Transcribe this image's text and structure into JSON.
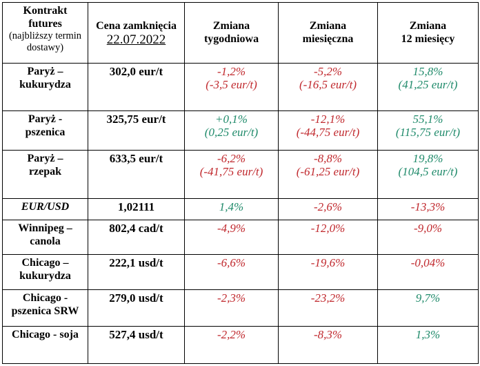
{
  "header": {
    "contract_line1": "Kontrakt",
    "contract_line2": "futures",
    "contract_sub_line1": "(najbliższy termin",
    "contract_sub_line2": "dostawy)",
    "close_label": "Cena zamknięcia",
    "close_date": "22.07.2022",
    "weekly_line1": "Zmiana",
    "weekly_line2": "tygodniowa",
    "monthly_line1": "Zmiana",
    "monthly_line2": "miesięczna",
    "yearly_line1": "Zmiana",
    "yearly_line2": "12 miesięcy"
  },
  "rows": [
    {
      "name_line1": "Paryż –",
      "name_line2": "kukurydza",
      "price": "302,0 eur/t",
      "weekly": "-1,2%",
      "weekly_abs": "(-3,5 eur/t)",
      "monthly": "-5,2%",
      "monthly_abs": "(-16,5 eur/t)",
      "yearly": "15,8%",
      "yearly_abs": "(41,25 eur/t)"
    },
    {
      "name_line1": "Paryż -",
      "name_line2": "pszenica",
      "price": "325,75 eur/t",
      "weekly": "+0,1%",
      "weekly_abs": "(0,25 eur/t)",
      "monthly": "-12,1%",
      "monthly_abs": "(-44,75 eur/t)",
      "yearly": "55,1%",
      "yearly_abs": "(115,75 eur/t)"
    },
    {
      "name_line1": "Paryż –",
      "name_line2": "rzepak",
      "price": "633,5 eur/t",
      "weekly": "-6,2%",
      "weekly_abs": "(-41,75 eur/t)",
      "monthly": "-8,8%",
      "monthly_abs": "(-61,25 eur/t)",
      "yearly": "19,8%",
      "yearly_abs": "(104,5 eur/t)"
    },
    {
      "name_line1": "EUR/USD",
      "price": "1,02111",
      "weekly": "1,4%",
      "monthly": "-2,6%",
      "yearly": "-13,3%"
    },
    {
      "name_line1": "Winnipeg –",
      "name_line2": "canola",
      "price": "802,4 cad/t",
      "weekly": "-4,9%",
      "monthly": "-12,0%",
      "yearly": "-9,0%"
    },
    {
      "name_line1": "Chicago –",
      "name_line2": "kukurydza",
      "price": "222,1 usd/t",
      "weekly": "-6,6%",
      "monthly": "-19,6%",
      "yearly": "-0,04%"
    },
    {
      "name_line1": "Chicago -",
      "name_line2": "pszenica SRW",
      "price": "279,0 usd/t",
      "weekly": "-2,3%",
      "monthly": "-23,2%",
      "yearly": "9,7%"
    },
    {
      "name_line1": "Chicago - soja",
      "price": "527,4 usd/t",
      "weekly": "-2,2%",
      "monthly": "-8,3%",
      "yearly": "1,3%"
    }
  ],
  "colors": {
    "negative": "#c0282d",
    "positive": "#1f8a6a",
    "border": "#000000"
  }
}
